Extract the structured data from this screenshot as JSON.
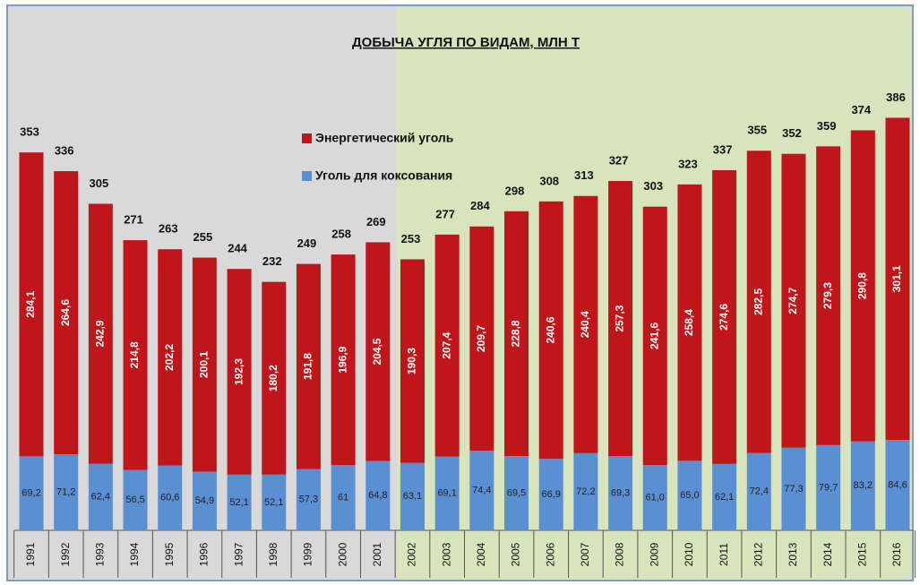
{
  "chart_data": {
    "type": "stacked-bar",
    "title": "ДОБЫЧА УГЛЯ ПО ВИДАМ,  МЛН Т",
    "categories": [
      "1991",
      "1992",
      "1993",
      "1994",
      "1995",
      "1996",
      "1997",
      "1998",
      "1999",
      "2000",
      "2001",
      "2002",
      "2003",
      "2004",
      "2005",
      "2006",
      "2007",
      "2008",
      "2009",
      "2010",
      "2011",
      "2012",
      "2013",
      "2014",
      "2015",
      "2016"
    ],
    "series": [
      {
        "name": "Уголь для коксования",
        "color": "#5b8fd3",
        "values": [
          69.2,
          71.2,
          62.4,
          56.5,
          60.6,
          54.9,
          52.1,
          52.1,
          57.3,
          61,
          64.8,
          63.1,
          69.1,
          74.4,
          69.5,
          66.9,
          72.2,
          69.3,
          61.0,
          65.0,
          62.1,
          72.4,
          77.3,
          79.7,
          83.2,
          84.6
        ],
        "value_labels": [
          "69,2",
          "71,2",
          "62,4",
          "56,5",
          "60,6",
          "54,9",
          "52,1",
          "52,1",
          "57,3",
          "61",
          "64,8",
          "63,1",
          "69,1",
          "74,4",
          "69,5",
          "66,9",
          "72,2",
          "69,3",
          "61,0",
          "65,0",
          "62,1",
          "72,4",
          "77,3",
          "79,7",
          "83,2",
          "84,6"
        ]
      },
      {
        "name": "Энергетический уголь",
        "color": "#c0161b",
        "values": [
          284.1,
          264.6,
          242.9,
          214.8,
          202.2,
          200.1,
          192.3,
          180.2,
          191.8,
          196.9,
          204.5,
          190.3,
          207.4,
          209.7,
          228.8,
          240.6,
          240.4,
          257.3,
          241.6,
          258.4,
          274.6,
          282.5,
          274.7,
          279.3,
          290.8,
          301.1
        ],
        "value_labels": [
          "284,1",
          "264,6",
          "242,9",
          "214,8",
          "202,2",
          "200,1",
          "192,3",
          "180,2",
          "191,8",
          "196,9",
          "204,5",
          "190,3",
          "207,4",
          "209,7",
          "228,8",
          "240,6",
          "240,4",
          "257,3",
          "241,6",
          "258,4",
          "274,6",
          "282,5",
          "274,7",
          "279,3",
          "290,8",
          "301,1"
        ]
      }
    ],
    "totals": [
      353,
      336,
      305,
      271,
      263,
      255,
      244,
      232,
      249,
      258,
      269,
      253,
      277,
      284,
      298,
      308,
      313,
      327,
      303,
      323,
      337,
      355,
      352,
      359,
      374,
      386
    ]
  }
}
